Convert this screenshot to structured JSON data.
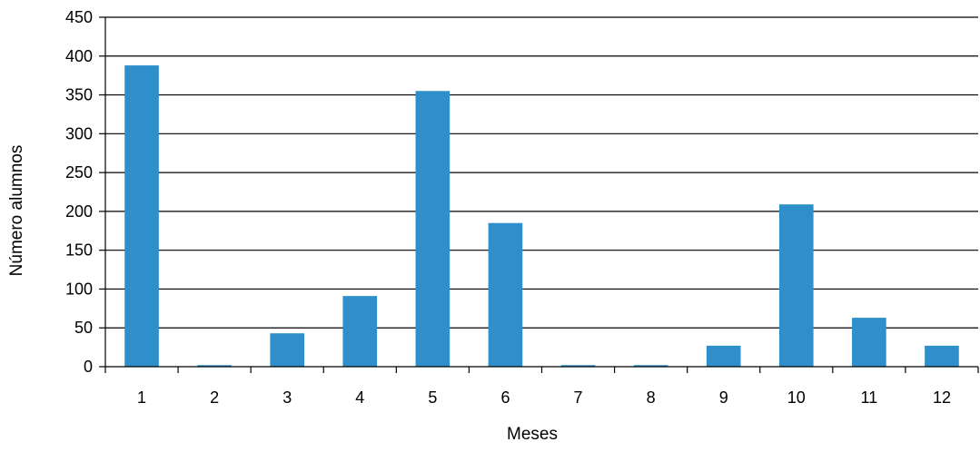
{
  "chart_data": {
    "type": "bar",
    "categories": [
      "1",
      "2",
      "3",
      "4",
      "5",
      "6",
      "7",
      "8",
      "9",
      "10",
      "11",
      "12"
    ],
    "values": [
      388,
      2,
      43,
      91,
      355,
      185,
      2,
      2,
      27,
      209,
      63,
      27
    ],
    "xlabel": "Meses",
    "ylabel": "Número alumnos",
    "ylim": [
      0,
      450
    ],
    "yticks": [
      0,
      50,
      100,
      150,
      200,
      250,
      300,
      350,
      400,
      450
    ],
    "grid": true,
    "legend": "none",
    "colors": {
      "bar": "#2f8fca",
      "grid": "#000000"
    }
  }
}
